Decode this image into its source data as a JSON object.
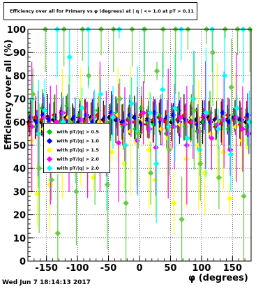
{
  "header": {
    "title": "Efficiency over all for Primary vs φ (degrees) at | η | <= 1.0 at pT > 0.11"
  },
  "footer": {
    "timestamp": "Wed Jun  7 18:14:13 2017"
  },
  "chart_data": {
    "type": "scatter",
    "title": "Efficiency over all for Primary vs φ (degrees) at | η | <= 1.0 at pT > 0.11",
    "xlabel": "φ (degrees)",
    "ylabel": "Efficiency over all (%)",
    "xlim": [
      -180,
      180
    ],
    "ylim": [
      0,
      100
    ],
    "x_ticks": [
      -150,
      -100,
      -50,
      0,
      50,
      100,
      150
    ],
    "y_ticks": [
      0,
      10,
      20,
      30,
      40,
      50,
      60,
      70,
      80,
      90,
      100
    ],
    "grid": true,
    "legend_position": "middle-left",
    "colors": [
      "#000000",
      "#ff0000",
      "#00cc00",
      "#0000ff",
      "#ffff00",
      "#ff00ff",
      "#00ffff",
      "#66cc44"
    ],
    "series": [
      {
        "name": "",
        "color": "#000000",
        "x": [
          -175,
          -165,
          -155,
          -145,
          -135,
          -125,
          -115,
          -105,
          -95,
          -85,
          -75,
          -65,
          -55,
          -45,
          -35,
          -25,
          -15,
          -5,
          5,
          15,
          25,
          35,
          45,
          55,
          65,
          75,
          85,
          95,
          105,
          115,
          125,
          135,
          145,
          155,
          165,
          175
        ],
        "y": [
          60,
          61,
          60,
          62,
          61,
          60,
          62,
          61,
          60,
          61,
          62,
          60,
          61,
          62,
          61,
          60,
          61,
          62,
          60,
          61,
          60,
          62,
          61,
          60,
          61,
          62,
          60,
          61,
          60,
          62,
          61,
          60,
          61,
          62,
          61,
          60
        ]
      },
      {
        "name": "",
        "color": "#ff0000",
        "x": [
          -175,
          -165,
          -155,
          -145,
          -135,
          -125,
          -115,
          -105,
          -95,
          -85,
          -75,
          -65,
          -55,
          -45,
          -35,
          -25,
          -15,
          -5,
          5,
          15,
          25,
          35,
          45,
          55,
          65,
          75,
          85,
          95,
          105,
          115,
          125,
          135,
          145,
          155,
          165,
          175
        ],
        "y": [
          59,
          62,
          61,
          58,
          63,
          60,
          61,
          59,
          62,
          60,
          61,
          63,
          58,
          60,
          62,
          59,
          61,
          60,
          63,
          59,
          61,
          62,
          60,
          58,
          61,
          63,
          60,
          59,
          62,
          61,
          58,
          60,
          63,
          61,
          59,
          62
        ]
      },
      {
        "name": "with pT/|q| > 0.5",
        "color": "#00cc00",
        "x": [
          -175,
          -165,
          -155,
          -145,
          -135,
          -125,
          -115,
          -105,
          -95,
          -85,
          -75,
          -65,
          -55,
          -45,
          -35,
          -25,
          -15,
          -5,
          5,
          15,
          25,
          35,
          45,
          55,
          65,
          75,
          85,
          95,
          105,
          115,
          125,
          135,
          145,
          155,
          165,
          175
        ],
        "y": [
          64,
          58,
          66,
          55,
          62,
          60,
          67,
          57,
          63,
          59,
          61,
          65,
          56,
          60,
          64,
          58,
          62,
          57,
          66,
          60,
          59,
          63,
          55,
          61,
          65,
          58,
          62,
          56,
          60,
          64,
          59,
          61,
          57,
          63,
          60,
          58
        ]
      },
      {
        "name": "with pT/|q| > 1.0",
        "color": "#0000ff",
        "x": [
          -175,
          -165,
          -155,
          -145,
          -135,
          -125,
          -115,
          -105,
          -95,
          -85,
          -75,
          -65,
          -55,
          -45,
          -35,
          -25,
          -15,
          -5,
          5,
          15,
          25,
          35,
          45,
          55,
          65,
          75,
          85,
          95,
          105,
          115,
          125,
          135,
          145,
          155,
          165,
          175
        ],
        "y": [
          62,
          60,
          63,
          61,
          59,
          64,
          60,
          62,
          61,
          63,
          60,
          59,
          62,
          64,
          61,
          60,
          63,
          62,
          59,
          61,
          64,
          60,
          62,
          63,
          60,
          61,
          62,
          59,
          63,
          60,
          61,
          64,
          60,
          62,
          61,
          63
        ]
      },
      {
        "name": "with pT/|q| > 1.5",
        "color": "#ffff00",
        "x": [
          -175,
          -165,
          -155,
          -145,
          -135,
          -125,
          -115,
          -105,
          -95,
          -85,
          -75,
          -65,
          -55,
          -45,
          -35,
          -25,
          -15,
          -5,
          5,
          15,
          25,
          35,
          45,
          55,
          65,
          75,
          85,
          95,
          105,
          115,
          125,
          135,
          145,
          155,
          165,
          175
        ],
        "y": [
          52,
          29,
          57,
          33,
          49,
          55,
          62,
          45,
          58,
          50,
          36,
          60,
          54,
          47,
          63,
          42,
          56,
          51,
          61,
          48,
          35,
          57,
          53,
          25,
          59,
          44,
          62,
          50,
          38,
          55,
          60,
          47,
          27,
          58,
          52,
          49
        ]
      },
      {
        "name": "with pT/|q| > 2.0",
        "color": "#ff00ff",
        "x": [
          -175,
          -165,
          -155,
          -145,
          -135,
          -125,
          -115,
          -105,
          -95,
          -85,
          -75,
          -65,
          -55,
          -45,
          -35,
          -25,
          -15,
          -5,
          5,
          15,
          25,
          35,
          45,
          55,
          65,
          75,
          85,
          95,
          105,
          115,
          125,
          135,
          145,
          155,
          165,
          175
        ],
        "y": [
          58,
          55,
          62,
          50,
          60,
          64,
          53,
          57,
          61,
          48,
          62,
          58,
          55,
          63,
          51,
          59,
          60,
          52,
          64,
          57,
          49,
          61,
          55,
          58,
          62,
          50,
          60,
          56,
          63,
          53,
          59,
          61,
          48,
          62,
          57,
          55
        ]
      },
      {
        "name": "with pT/|q| > 2.0",
        "color": "#00ffff",
        "x": [
          -175,
          -165,
          -155,
          -145,
          -135,
          -125,
          -115,
          -105,
          -95,
          -85,
          -75,
          -65,
          -55,
          -45,
          -35,
          -25,
          -15,
          -5,
          5,
          15,
          25,
          35,
          45,
          55,
          65,
          75,
          85,
          95,
          105,
          115,
          125,
          135,
          145,
          155,
          165,
          175
        ],
        "y": [
          70,
          55,
          65,
          48,
          100,
          60,
          88,
          52,
          66,
          100,
          58,
          72,
          45,
          62,
          100,
          50,
          68,
          56,
          100,
          64,
          42,
          74,
          58,
          66,
          100,
          53,
          70,
          48,
          64,
          100,
          57,
          80,
          46,
          66,
          100,
          60
        ]
      },
      {
        "name": "",
        "color": "#66cc44",
        "x": [
          -175,
          -165,
          -155,
          -145,
          -135,
          -125,
          -115,
          -105,
          -95,
          -85,
          -75,
          -65,
          -55,
          -45,
          -35,
          -25,
          -15,
          -5,
          5,
          15,
          25,
          35,
          45,
          55,
          65,
          75,
          85,
          95,
          105,
          115,
          125,
          135,
          145,
          155,
          165,
          175
        ],
        "y": [
          72,
          40,
          100,
          35,
          12,
          100,
          60,
          30,
          100,
          80,
          45,
          100,
          33,
          100,
          70,
          25,
          100,
          55,
          100,
          38,
          82,
          100,
          48,
          100,
          18,
          100,
          65,
          42,
          100,
          90,
          36,
          100,
          75,
          100,
          28,
          100
        ]
      }
    ]
  }
}
